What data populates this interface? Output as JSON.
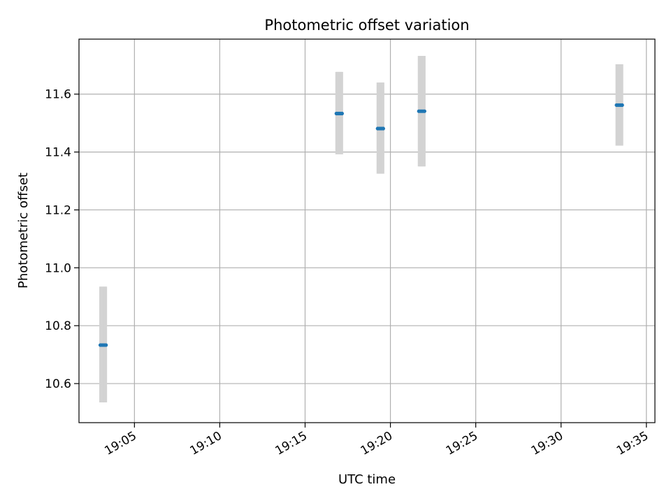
{
  "chart_data": {
    "type": "scatter",
    "title": "Photometric offset variation",
    "xlabel": "UTC time",
    "ylabel": "Photometric offset",
    "x_unit": "minutes after 19:00 UTC",
    "xlim": [
      "19:01:45",
      "19:35:30"
    ],
    "ylim": [
      10.465,
      11.79
    ],
    "x_ticks": [
      "19:05",
      "19:10",
      "19:15",
      "19:20",
      "19:25",
      "19:30",
      "19:35"
    ],
    "y_ticks": [
      "10.6",
      "10.8",
      "11.0",
      "11.2",
      "11.4",
      "11.6"
    ],
    "grid": true,
    "series": [
      {
        "marker_color": "#1f77b4",
        "errorbar_color": "#d3d3d3",
        "points": [
          {
            "x": "19:03:00",
            "y": 10.733,
            "ylo": 10.535,
            "yhi": 10.935
          },
          {
            "x": "19:03:05",
            "y": 10.733,
            "ylo": 10.535,
            "yhi": 10.935
          },
          {
            "x": "19:03:10",
            "y": 10.733,
            "ylo": 10.535,
            "yhi": 10.935
          },
          {
            "x": "19:03:15",
            "y": 10.733,
            "ylo": 10.535,
            "yhi": 10.935
          },
          {
            "x": "19:03:20",
            "y": 10.733,
            "ylo": 10.535,
            "yhi": 10.935
          },
          {
            "x": "19:16:50",
            "y": 11.533,
            "ylo": 11.392,
            "yhi": 11.677
          },
          {
            "x": "19:16:55",
            "y": 11.533,
            "ylo": 11.392,
            "yhi": 11.677
          },
          {
            "x": "19:17:00",
            "y": 11.533,
            "ylo": 11.392,
            "yhi": 11.677
          },
          {
            "x": "19:17:05",
            "y": 11.533,
            "ylo": 11.392,
            "yhi": 11.677
          },
          {
            "x": "19:17:10",
            "y": 11.533,
            "ylo": 11.392,
            "yhi": 11.677
          },
          {
            "x": "19:19:15",
            "y": 11.481,
            "ylo": 11.325,
            "yhi": 11.64
          },
          {
            "x": "19:19:20",
            "y": 11.481,
            "ylo": 11.325,
            "yhi": 11.64
          },
          {
            "x": "19:19:25",
            "y": 11.481,
            "ylo": 11.325,
            "yhi": 11.64
          },
          {
            "x": "19:19:30",
            "y": 11.481,
            "ylo": 11.325,
            "yhi": 11.64
          },
          {
            "x": "19:19:35",
            "y": 11.481,
            "ylo": 11.325,
            "yhi": 11.64
          },
          {
            "x": "19:21:40",
            "y": 11.541,
            "ylo": 11.35,
            "yhi": 11.732
          },
          {
            "x": "19:21:45",
            "y": 11.541,
            "ylo": 11.35,
            "yhi": 11.732
          },
          {
            "x": "19:21:50",
            "y": 11.541,
            "ylo": 11.35,
            "yhi": 11.732
          },
          {
            "x": "19:21:55",
            "y": 11.541,
            "ylo": 11.35,
            "yhi": 11.732
          },
          {
            "x": "19:22:00",
            "y": 11.541,
            "ylo": 11.35,
            "yhi": 11.732
          },
          {
            "x": "19:33:15",
            "y": 11.562,
            "ylo": 11.422,
            "yhi": 11.703
          },
          {
            "x": "19:33:20",
            "y": 11.562,
            "ylo": 11.422,
            "yhi": 11.703
          },
          {
            "x": "19:33:25",
            "y": 11.562,
            "ylo": 11.422,
            "yhi": 11.703
          },
          {
            "x": "19:33:30",
            "y": 11.562,
            "ylo": 11.422,
            "yhi": 11.703
          },
          {
            "x": "19:33:35",
            "y": 11.562,
            "ylo": 11.422,
            "yhi": 11.703
          }
        ]
      }
    ]
  }
}
